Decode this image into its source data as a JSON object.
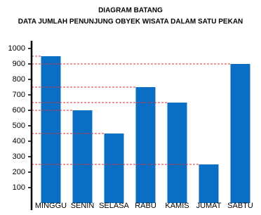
{
  "chart_data": {
    "type": "bar",
    "title": "DIAGRAM BATANG",
    "subtitle": "DATA JUMLAH PENUNJUNG OBYEK WISATA DALAM SATU PEKAN",
    "categories": [
      "MINGGU",
      "SENIN",
      "SELASA",
      "RABU",
      "KAMIS",
      "JUMAT",
      "SABTU"
    ],
    "values": [
      950,
      600,
      450,
      750,
      650,
      250,
      900
    ],
    "color": "#0a6fc4",
    "guide_color": "#e0302f",
    "ylim": [
      0,
      1050
    ],
    "yticks": [
      100,
      200,
      300,
      400,
      500,
      600,
      700,
      800,
      900,
      1000
    ]
  }
}
